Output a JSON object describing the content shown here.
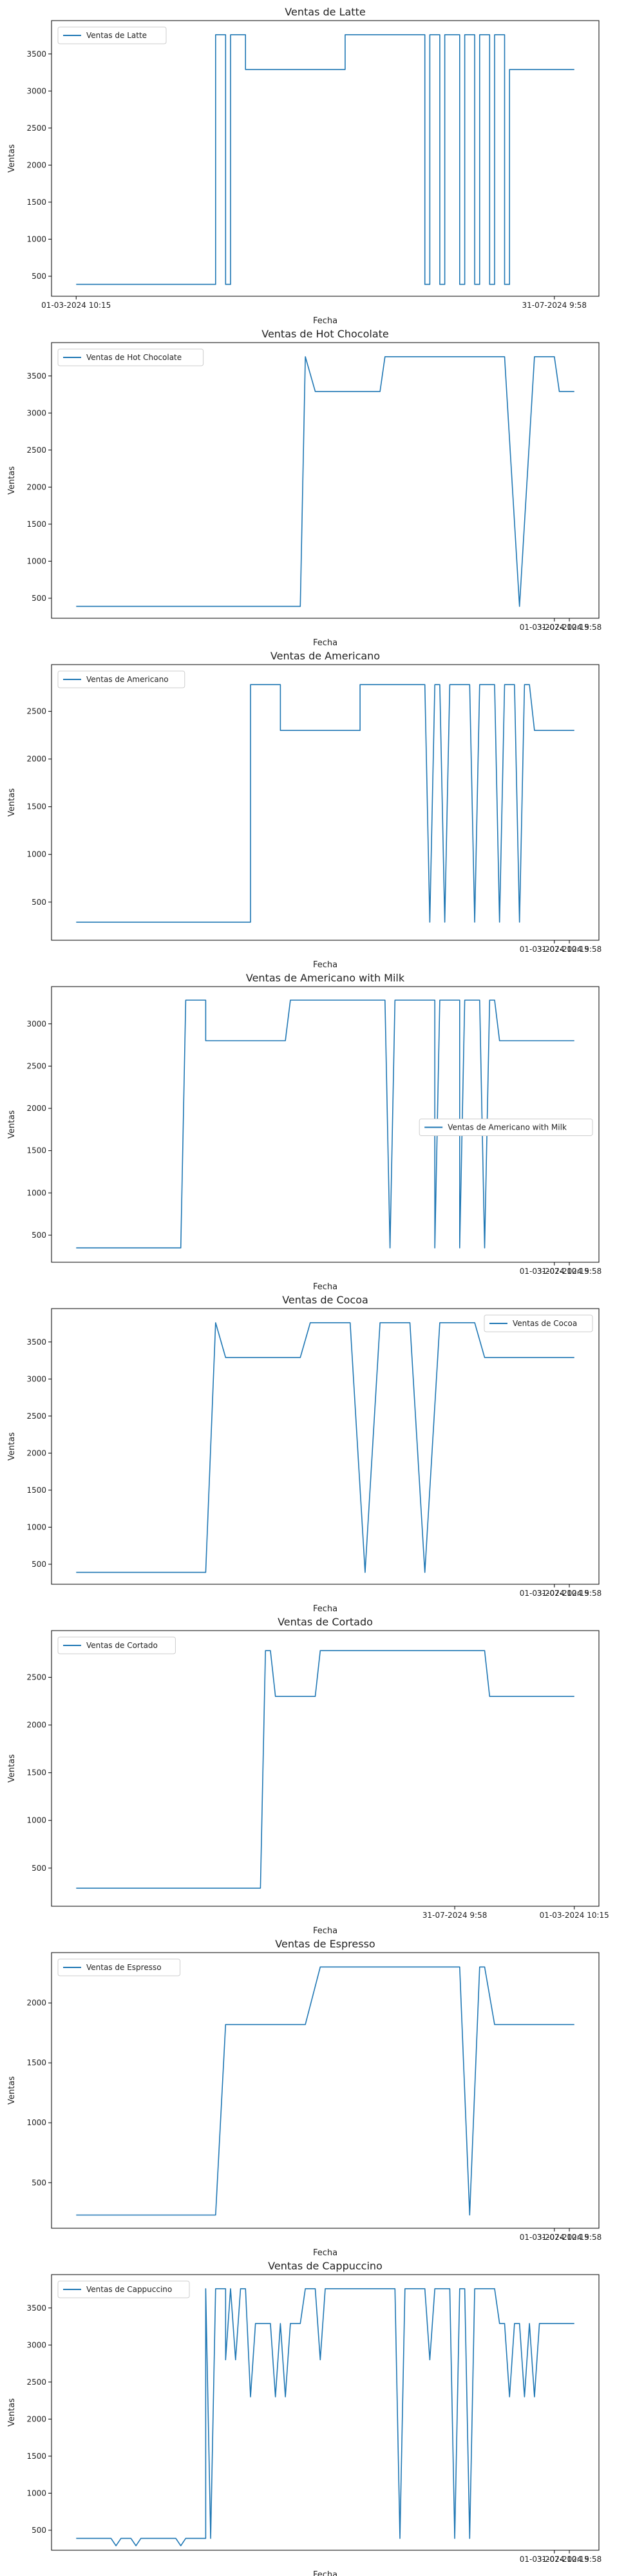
{
  "chart_data": [
    {
      "type": "line",
      "title": "Ventas de Latte",
      "xlabel": "Fecha",
      "ylabel": "Ventas",
      "legend": {
        "label": "Ventas de Latte",
        "placement": "upper-left"
      },
      "ylim": [
        230,
        3950
      ],
      "yticks": [
        500,
        1000,
        1500,
        2000,
        2500,
        3000,
        3500
      ],
      "xticks": [
        {
          "t": 0.0,
          "label": "01-03-2024 10:15"
        },
        {
          "t": 0.96,
          "label": "31-07-2024 9:58"
        }
      ],
      "segments": [
        [
          0.0,
          390
        ],
        [
          0.28,
          390
        ],
        [
          0.28,
          3760
        ],
        [
          0.3,
          3760
        ],
        [
          0.3,
          390
        ],
        [
          0.31,
          390
        ],
        [
          0.31,
          3760
        ],
        [
          0.34,
          3760
        ],
        [
          0.34,
          3290
        ],
        [
          0.54,
          3290
        ],
        [
          0.54,
          3760
        ],
        [
          0.7,
          3760
        ],
        [
          0.7,
          390
        ],
        [
          0.71,
          390
        ],
        [
          0.71,
          3760
        ],
        [
          0.73,
          3760
        ],
        [
          0.73,
          390
        ],
        [
          0.74,
          390
        ],
        [
          0.74,
          3760
        ],
        [
          0.77,
          3760
        ],
        [
          0.77,
          390
        ],
        [
          0.78,
          390
        ],
        [
          0.78,
          3760
        ],
        [
          0.8,
          3760
        ],
        [
          0.8,
          390
        ],
        [
          0.81,
          390
        ],
        [
          0.81,
          3760
        ],
        [
          0.83,
          3760
        ],
        [
          0.83,
          390
        ],
        [
          0.84,
          390
        ],
        [
          0.84,
          3760
        ],
        [
          0.86,
          3760
        ],
        [
          0.86,
          390
        ],
        [
          0.87,
          390
        ],
        [
          0.87,
          3290
        ],
        [
          1.0,
          3290
        ]
      ]
    },
    {
      "type": "line",
      "title": "Ventas de Hot Chocolate",
      "xlabel": "Fecha",
      "ylabel": "Ventas",
      "legend": {
        "label": "Ventas de Hot Chocolate",
        "placement": "upper-left"
      },
      "ylim": [
        230,
        3950
      ],
      "yticks": [
        500,
        1000,
        1500,
        2000,
        2500,
        3000,
        3500
      ],
      "xticks": [
        {
          "t": 0.96,
          "label": "01-03-2024 10:15"
        },
        {
          "t": 0.99,
          "label": "31-07-2024 9:58"
        }
      ],
      "segments": [
        [
          0.0,
          390
        ],
        [
          0.45,
          390
        ],
        [
          0.46,
          3760
        ],
        [
          0.48,
          3290
        ],
        [
          0.61,
          3290
        ],
        [
          0.62,
          3760
        ],
        [
          0.86,
          3760
        ],
        [
          0.89,
          390
        ],
        [
          0.92,
          3760
        ],
        [
          0.96,
          3760
        ],
        [
          0.97,
          3290
        ],
        [
          1.0,
          3290
        ]
      ]
    },
    {
      "type": "line",
      "title": "Ventas de Americano",
      "xlabel": "Fecha",
      "ylabel": "Ventas",
      "legend": {
        "label": "Ventas de Americano",
        "placement": "upper-left"
      },
      "ylim": [
        100,
        2990
      ],
      "yticks": [
        500,
        1000,
        1500,
        2000,
        2500
      ],
      "xticks": [
        {
          "t": 0.96,
          "label": "01-03-2024 10:15"
        },
        {
          "t": 0.99,
          "label": "31-07-2024 9:58"
        }
      ],
      "segments": [
        [
          0.0,
          290
        ],
        [
          0.35,
          290
        ],
        [
          0.35,
          2780
        ],
        [
          0.41,
          2780
        ],
        [
          0.41,
          2300
        ],
        [
          0.57,
          2300
        ],
        [
          0.57,
          2780
        ],
        [
          0.7,
          2780
        ],
        [
          0.71,
          290
        ],
        [
          0.72,
          2780
        ],
        [
          0.73,
          2780
        ],
        [
          0.74,
          290
        ],
        [
          0.75,
          2780
        ],
        [
          0.79,
          2780
        ],
        [
          0.8,
          290
        ],
        [
          0.81,
          2780
        ],
        [
          0.84,
          2780
        ],
        [
          0.85,
          290
        ],
        [
          0.86,
          2780
        ],
        [
          0.88,
          2780
        ],
        [
          0.89,
          290
        ],
        [
          0.9,
          2780
        ],
        [
          0.91,
          2780
        ],
        [
          0.92,
          2300
        ],
        [
          1.0,
          2300
        ]
      ]
    },
    {
      "type": "line",
      "title": "Ventas de Americano with Milk",
      "xlabel": "Fecha",
      "ylabel": "Ventas",
      "legend": {
        "label": "Ventas de Americano with Milk",
        "placement": "center-right"
      },
      "ylim": [
        180,
        3440
      ],
      "yticks": [
        500,
        1000,
        1500,
        2000,
        2500,
        3000
      ],
      "xticks": [
        {
          "t": 0.96,
          "label": "01-03-2024 10:15"
        },
        {
          "t": 0.99,
          "label": "31-07-2024 9:58"
        }
      ],
      "segments": [
        [
          0.0,
          350
        ],
        [
          0.21,
          350
        ],
        [
          0.22,
          3280
        ],
        [
          0.26,
          3280
        ],
        [
          0.26,
          2800
        ],
        [
          0.42,
          2800
        ],
        [
          0.43,
          3280
        ],
        [
          0.62,
          3280
        ],
        [
          0.63,
          350
        ],
        [
          0.64,
          3280
        ],
        [
          0.72,
          3280
        ],
        [
          0.72,
          350
        ],
        [
          0.73,
          3280
        ],
        [
          0.77,
          3280
        ],
        [
          0.77,
          350
        ],
        [
          0.78,
          3280
        ],
        [
          0.81,
          3280
        ],
        [
          0.82,
          350
        ],
        [
          0.83,
          3280
        ],
        [
          0.84,
          3280
        ],
        [
          0.85,
          2800
        ],
        [
          1.0,
          2800
        ]
      ]
    },
    {
      "type": "line",
      "title": "Ventas de Cocoa",
      "xlabel": "Fecha",
      "ylabel": "Ventas",
      "legend": {
        "label": "Ventas de Cocoa",
        "placement": "upper-right"
      },
      "ylim": [
        230,
        3950
      ],
      "yticks": [
        500,
        1000,
        1500,
        2000,
        2500,
        3000,
        3500
      ],
      "xticks": [
        {
          "t": 0.96,
          "label": "01-03-2024 10:15"
        },
        {
          "t": 0.99,
          "label": "31-07-2024 9:58"
        }
      ],
      "segments": [
        [
          0.0,
          390
        ],
        [
          0.26,
          390
        ],
        [
          0.28,
          3760
        ],
        [
          0.3,
          3290
        ],
        [
          0.45,
          3290
        ],
        [
          0.47,
          3760
        ],
        [
          0.55,
          3760
        ],
        [
          0.58,
          390
        ],
        [
          0.61,
          3760
        ],
        [
          0.67,
          3760
        ],
        [
          0.7,
          390
        ],
        [
          0.73,
          3760
        ],
        [
          0.8,
          3760
        ],
        [
          0.82,
          3290
        ],
        [
          1.0,
          3290
        ]
      ]
    },
    {
      "type": "line",
      "title": "Ventas de Cortado",
      "xlabel": "Fecha",
      "ylabel": "Ventas",
      "legend": {
        "label": "Ventas de Cortado",
        "placement": "upper-left"
      },
      "ylim": [
        100,
        2990
      ],
      "yticks": [
        500,
        1000,
        1500,
        2000,
        2500
      ],
      "xticks": [
        {
          "t": 0.76,
          "label": "31-07-2024 9:58"
        },
        {
          "t": 1.0,
          "label": "01-03-2024 10:15"
        }
      ],
      "segments": [
        [
          0.0,
          290
        ],
        [
          0.37,
          290
        ],
        [
          0.38,
          2780
        ],
        [
          0.39,
          2780
        ],
        [
          0.4,
          2300
        ],
        [
          0.48,
          2300
        ],
        [
          0.49,
          2780
        ],
        [
          0.82,
          2780
        ],
        [
          0.83,
          2300
        ],
        [
          1.0,
          2300
        ]
      ]
    },
    {
      "type": "line",
      "title": "Ventas de Espresso",
      "xlabel": "Fecha",
      "ylabel": "Ventas",
      "legend": {
        "label": "Ventas de Espresso",
        "placement": "upper-left"
      },
      "ylim": [
        120,
        2420
      ],
      "yticks": [
        500,
        1000,
        1500,
        2000
      ],
      "xticks": [
        {
          "t": 0.96,
          "label": "01-03-2024 10:15"
        },
        {
          "t": 0.99,
          "label": "31-07-2024 9:58"
        }
      ],
      "segments": [
        [
          0.0,
          230
        ],
        [
          0.28,
          230
        ],
        [
          0.3,
          1820
        ],
        [
          0.46,
          1820
        ],
        [
          0.49,
          2300
        ],
        [
          0.77,
          2300
        ],
        [
          0.79,
          230
        ],
        [
          0.81,
          2300
        ],
        [
          0.82,
          2300
        ],
        [
          0.84,
          1820
        ],
        [
          1.0,
          1820
        ]
      ]
    },
    {
      "type": "line",
      "title": "Ventas de Cappuccino",
      "xlabel": "Fecha",
      "ylabel": "Ventas",
      "legend": {
        "label": "Ventas de Cappuccino",
        "placement": "upper-left"
      },
      "ylim": [
        230,
        3950
      ],
      "yticks": [
        500,
        1000,
        1500,
        2000,
        2500,
        3000,
        3500
      ],
      "xticks": [
        {
          "t": 0.96,
          "label": "01-03-2024 10:15"
        },
        {
          "t": 0.99,
          "label": "31-07-2024 9:58"
        }
      ],
      "segments": [
        [
          0.0,
          390
        ],
        [
          0.07,
          390
        ],
        [
          0.08,
          290
        ],
        [
          0.09,
          390
        ],
        [
          0.11,
          390
        ],
        [
          0.12,
          290
        ],
        [
          0.13,
          390
        ],
        [
          0.2,
          390
        ],
        [
          0.21,
          290
        ],
        [
          0.22,
          390
        ],
        [
          0.26,
          390
        ],
        [
          0.26,
          3760
        ],
        [
          0.27,
          390
        ],
        [
          0.28,
          3760
        ],
        [
          0.3,
          3760
        ],
        [
          0.3,
          2800
        ],
        [
          0.31,
          3760
        ],
        [
          0.32,
          2800
        ],
        [
          0.33,
          3760
        ],
        [
          0.34,
          3760
        ],
        [
          0.35,
          2300
        ],
        [
          0.36,
          3290
        ],
        [
          0.39,
          3290
        ],
        [
          0.4,
          2300
        ],
        [
          0.41,
          3290
        ],
        [
          0.42,
          2300
        ],
        [
          0.43,
          3290
        ],
        [
          0.45,
          3290
        ],
        [
          0.46,
          3760
        ],
        [
          0.48,
          3760
        ],
        [
          0.49,
          2800
        ],
        [
          0.5,
          3760
        ],
        [
          0.64,
          3760
        ],
        [
          0.65,
          390
        ],
        [
          0.66,
          3760
        ],
        [
          0.7,
          3760
        ],
        [
          0.71,
          2800
        ],
        [
          0.72,
          3760
        ],
        [
          0.75,
          3760
        ],
        [
          0.76,
          390
        ],
        [
          0.77,
          3760
        ],
        [
          0.78,
          3760
        ],
        [
          0.79,
          390
        ],
        [
          0.8,
          3760
        ],
        [
          0.84,
          3760
        ],
        [
          0.85,
          3290
        ],
        [
          0.86,
          3290
        ],
        [
          0.87,
          2300
        ],
        [
          0.88,
          3290
        ],
        [
          0.89,
          3290
        ],
        [
          0.9,
          2300
        ],
        [
          0.91,
          3290
        ],
        [
          0.92,
          2300
        ],
        [
          0.93,
          3290
        ],
        [
          1.0,
          3290
        ]
      ]
    }
  ]
}
